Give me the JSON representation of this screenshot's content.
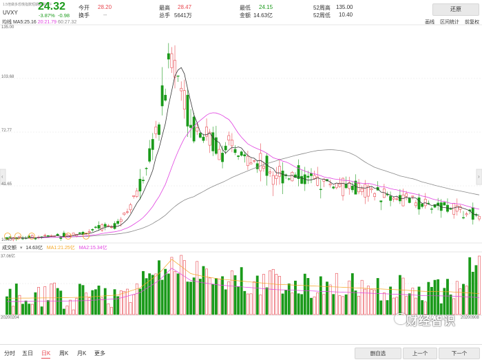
{
  "header": {
    "subtitle_tiny": "1.5倍做多恐慌指数短期期货ETF",
    "price": "24.32",
    "change_pct": "-3.87%",
    "change_abs": "-0.98",
    "symbol": "UVXY",
    "stats": [
      {
        "label": "今开",
        "value": "28.20",
        "color": "#e8474f"
      },
      {
        "label": "换手",
        "value": "--",
        "color": "#888888"
      },
      {
        "label": "最高",
        "value": "28.47",
        "color": "#e8474f"
      },
      {
        "label": "总手",
        "value": "5641万",
        "color": "#333333"
      },
      {
        "label": "最低",
        "value": "24.15",
        "color": "#1a9a1a"
      },
      {
        "label": "金额",
        "value": "14.63亿",
        "color": "#333333"
      },
      {
        "label": "52周高",
        "value": "135.00",
        "color": "#333333"
      },
      {
        "label": "52周低",
        "value": "10.40",
        "color": "#333333"
      }
    ],
    "restore_label": "还原"
  },
  "ma_legend": {
    "prefix": "均线",
    "ma5": "MA5:25.16",
    "ma20": "20:21.79",
    "ma60": "60:27.32"
  },
  "tools": [
    "画线",
    "区间统计",
    "前复权"
  ],
  "price_axis": {
    "labels": [
      "135.00",
      "103.68",
      "72.77",
      "41.65",
      "10.40"
    ]
  },
  "volume_legend": {
    "title": "成交额",
    "value": "14.63亿",
    "ma1": "MA1:21.25亿",
    "ma2": "MA2:15.34亿",
    "axis_top": "37.06亿"
  },
  "dates": {
    "start": "20200204",
    "end": "20200908"
  },
  "tabs": [
    "分时",
    "五日",
    "日K",
    "周K",
    "月K",
    "更多"
  ],
  "active_tab": "日K",
  "nav": {
    "watchlist": "删自选",
    "prev": "上一个",
    "next": "下一个"
  },
  "watermark": "财经智识",
  "colors": {
    "up": "#e8474f",
    "down": "#1a9a1a",
    "ma5": "#333333",
    "ma20": "#e040e0",
    "ma60": "#888888",
    "ma_vol1": "#f5a623"
  }
}
